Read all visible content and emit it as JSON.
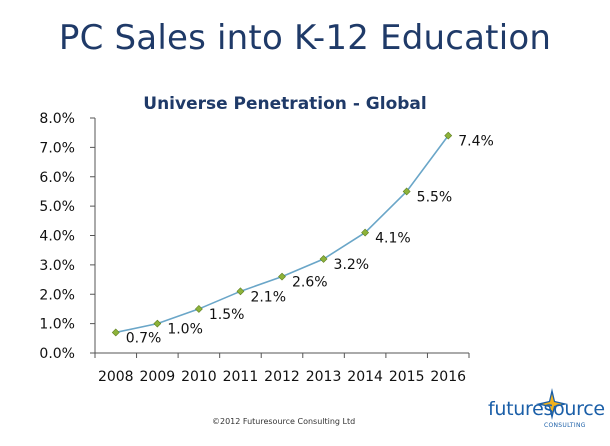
{
  "slide_title": "PC Sales into K-12 Education",
  "chart_data": {
    "type": "line",
    "title": "Universe Penetration - Global",
    "categories": [
      "2008",
      "2009",
      "2010",
      "2011",
      "2012",
      "2013",
      "2014",
      "2015",
      "2016"
    ],
    "series": [
      {
        "values": [
          0.7,
          1.0,
          1.5,
          2.1,
          2.6,
          3.2,
          4.1,
          5.5,
          7.4
        ],
        "data_labels": [
          "0.7%",
          "1.0%",
          "1.5%",
          "2.1%",
          "2.6%",
          "3.2%",
          "4.1%",
          "5.5%",
          "7.4%"
        ]
      }
    ],
    "ylim": [
      0,
      8
    ],
    "y_ticks": [
      "0.0%",
      "1.0%",
      "2.0%",
      "3.0%",
      "4.0%",
      "5.0%",
      "6.0%",
      "7.0%",
      "8.0%"
    ],
    "grid": false,
    "legend": false,
    "colors": {
      "line": "#6aa6c8",
      "marker": "#8db33a",
      "axis": "#555555"
    }
  },
  "footer": {
    "copyright": "©2012 Futuresource Consulting Ltd"
  },
  "logo": {
    "wordmark": "futuresource",
    "tagline": "CONSULTING"
  }
}
